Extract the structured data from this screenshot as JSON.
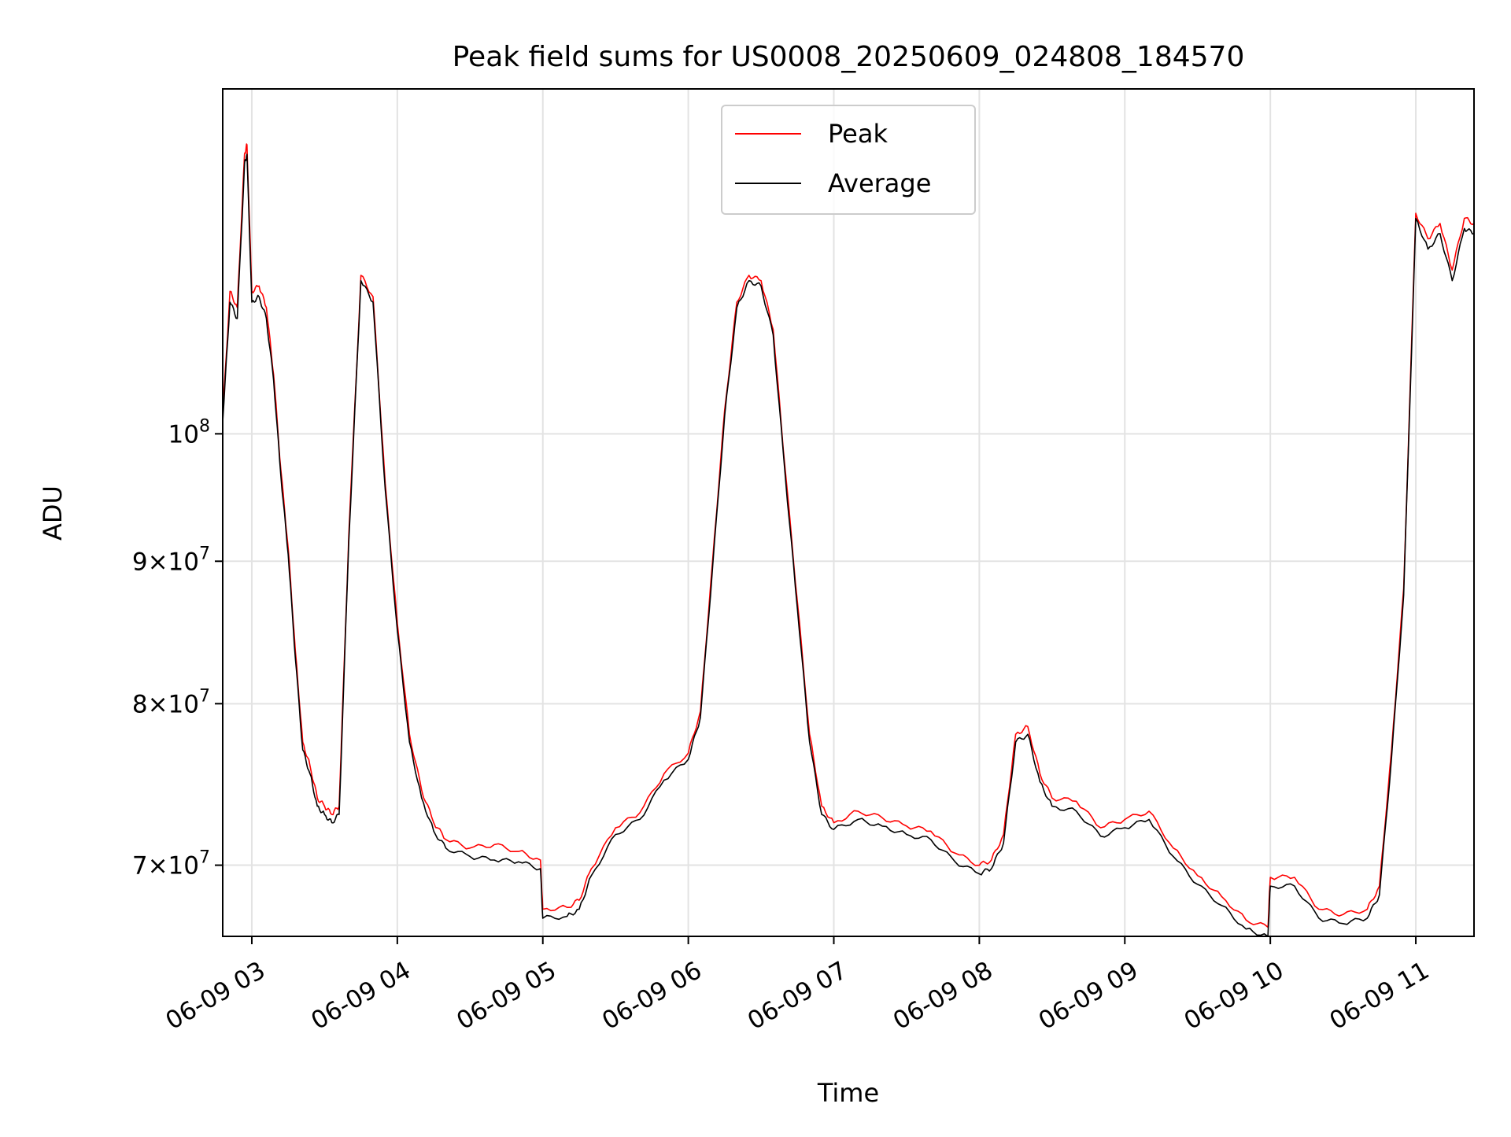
{
  "chart_data": {
    "type": "line",
    "title": "Peak field sums for US0008_20250609_024808_184570",
    "xlabel": "Time",
    "ylabel": "ADU",
    "y_scale": "log",
    "ylim": [
      66000000,
      133000000
    ],
    "xlim": [
      "2025-06-09 02:48",
      "2025-06-09 11:24"
    ],
    "grid": true,
    "legend_position": "top-center",
    "x_ticks": [
      {
        "at": "2025-06-09 03:00",
        "label": "06-09 03"
      },
      {
        "at": "2025-06-09 04:00",
        "label": "06-09 04"
      },
      {
        "at": "2025-06-09 05:00",
        "label": "06-09 05"
      },
      {
        "at": "2025-06-09 06:00",
        "label": "06-09 06"
      },
      {
        "at": "2025-06-09 07:00",
        "label": "06-09 07"
      },
      {
        "at": "2025-06-09 08:00",
        "label": "06-09 08"
      },
      {
        "at": "2025-06-09 09:00",
        "label": "06-09 09"
      },
      {
        "at": "2025-06-09 10:00",
        "label": "06-09 10"
      },
      {
        "at": "2025-06-09 11:00",
        "label": "06-09 11"
      }
    ],
    "y_ticks": [
      {
        "value": 70000000,
        "mantissa": "7",
        "base": "10",
        "exp": "7"
      },
      {
        "value": 80000000,
        "mantissa": "8",
        "base": "10",
        "exp": "7"
      },
      {
        "value": 90000000,
        "mantissa": "9",
        "base": "10",
        "exp": "7"
      },
      {
        "value": 100000000,
        "mantissa": "",
        "base": "10",
        "exp": "8"
      }
    ],
    "x": [
      "2025-06-09 02:48",
      "2025-06-09 02:51",
      "2025-06-09 02:54",
      "2025-06-09 02:57",
      "2025-06-09 02:58",
      "2025-06-09 03:00",
      "2025-06-09 03:03",
      "2025-06-09 03:06",
      "2025-06-09 03:09",
      "2025-06-09 03:12",
      "2025-06-09 03:15",
      "2025-06-09 03:18",
      "2025-06-09 03:21",
      "2025-06-09 03:24",
      "2025-06-09 03:27",
      "2025-06-09 03:30",
      "2025-06-09 03:33",
      "2025-06-09 03:36",
      "2025-06-09 03:40",
      "2025-06-09 03:45",
      "2025-06-09 03:50",
      "2025-06-09 03:55",
      "2025-06-09 04:00",
      "2025-06-09 04:05",
      "2025-06-09 04:10",
      "2025-06-09 04:15",
      "2025-06-09 04:20",
      "2025-06-09 04:30",
      "2025-06-09 04:40",
      "2025-06-09 04:50",
      "2025-06-09 04:59",
      "2025-06-09 05:00",
      "2025-06-09 05:10",
      "2025-06-09 05:15",
      "2025-06-09 05:20",
      "2025-06-09 05:30",
      "2025-06-09 05:40",
      "2025-06-09 05:50",
      "2025-06-09 06:00",
      "2025-06-09 06:05",
      "2025-06-09 06:10",
      "2025-06-09 06:15",
      "2025-06-09 06:20",
      "2025-06-09 06:25",
      "2025-06-09 06:30",
      "2025-06-09 06:35",
      "2025-06-09 06:40",
      "2025-06-09 06:45",
      "2025-06-09 06:50",
      "2025-06-09 06:55",
      "2025-06-09 07:00",
      "2025-06-09 07:10",
      "2025-06-09 07:20",
      "2025-06-09 07:30",
      "2025-06-09 07:40",
      "2025-06-09 07:50",
      "2025-06-09 08:00",
      "2025-06-09 08:05",
      "2025-06-09 08:10",
      "2025-06-09 08:15",
      "2025-06-09 08:20",
      "2025-06-09 08:25",
      "2025-06-09 08:30",
      "2025-06-09 08:40",
      "2025-06-09 08:50",
      "2025-06-09 09:00",
      "2025-06-09 09:10",
      "2025-06-09 09:20",
      "2025-06-09 09:30",
      "2025-06-09 09:40",
      "2025-06-09 09:50",
      "2025-06-09 09:59",
      "2025-06-09 10:00",
      "2025-06-09 10:10",
      "2025-06-09 10:20",
      "2025-06-09 10:30",
      "2025-06-09 10:40",
      "2025-06-09 10:45",
      "2025-06-09 10:50",
      "2025-06-09 10:55",
      "2025-06-09 11:00",
      "2025-06-09 11:05",
      "2025-06-09 11:10",
      "2025-06-09 11:15",
      "2025-06-09 11:20",
      "2025-06-09 11:24"
    ],
    "series": [
      {
        "name": "Peak",
        "color": "#ff0000",
        "values": [
          101500000,
          112500000,
          111000000,
          126000000,
          127000000,
          112500000,
          113000000,
          111000000,
          105000000,
          97000000,
          91000000,
          83500000,
          77500000,
          76000000,
          74000000,
          73500000,
          73000000,
          73500000,
          92000000,
          114000000,
          112000000,
          96000000,
          85500000,
          78000000,
          74500000,
          72500000,
          71500000,
          71000000,
          71200000,
          70800000,
          70300000,
          67500000,
          67600000,
          68000000,
          69800000,
          72200000,
          73100000,
          75500000,
          76800000,
          79500000,
          90000000,
          102000000,
          111500000,
          114000000,
          113500000,
          109000000,
          97000000,
          87000000,
          78000000,
          73500000,
          72500000,
          73200000,
          72800000,
          72300000,
          72000000,
          70700000,
          70000000,
          70300000,
          71800000,
          78000000,
          78500000,
          75500000,
          74000000,
          73800000,
          72200000,
          72700000,
          73200000,
          71000000,
          69400000,
          68200000,
          66900000,
          66500000,
          69300000,
          69300000,
          67500000,
          67200000,
          67500000,
          68800000,
          77000000,
          88000000,
          120000000,
          117500000,
          119000000,
          114500000,
          119500000,
          119000000
        ]
      },
      {
        "name": "Average",
        "color": "#000000",
        "values": [
          101000000,
          111500000,
          110000000,
          125000000,
          126000000,
          111500000,
          112000000,
          110000000,
          104500000,
          96500000,
          90500000,
          83000000,
          77000000,
          75500000,
          73500000,
          73000000,
          72500000,
          73000000,
          91500000,
          113500000,
          111500000,
          95500000,
          85000000,
          77500000,
          74000000,
          72000000,
          71000000,
          70500000,
          70300000,
          70200000,
          69800000,
          67000000,
          67100000,
          67500000,
          69400000,
          71800000,
          72700000,
          75100000,
          76400000,
          79100000,
          89500000,
          101500000,
          111000000,
          113500000,
          113000000,
          108500000,
          96500000,
          86500000,
          77500000,
          73000000,
          72100000,
          72700000,
          72300000,
          71800000,
          71500000,
          70200000,
          69500000,
          69800000,
          71300000,
          77500000,
          78000000,
          75000000,
          73500000,
          73200000,
          71700000,
          72200000,
          72700000,
          70500000,
          68900000,
          67700000,
          66400000,
          66000000,
          68800000,
          68800000,
          67000000,
          66700000,
          67000000,
          68300000,
          76500000,
          87500000,
          119500000,
          116500000,
          118000000,
          113500000,
          118500000,
          118000000
        ]
      }
    ]
  }
}
